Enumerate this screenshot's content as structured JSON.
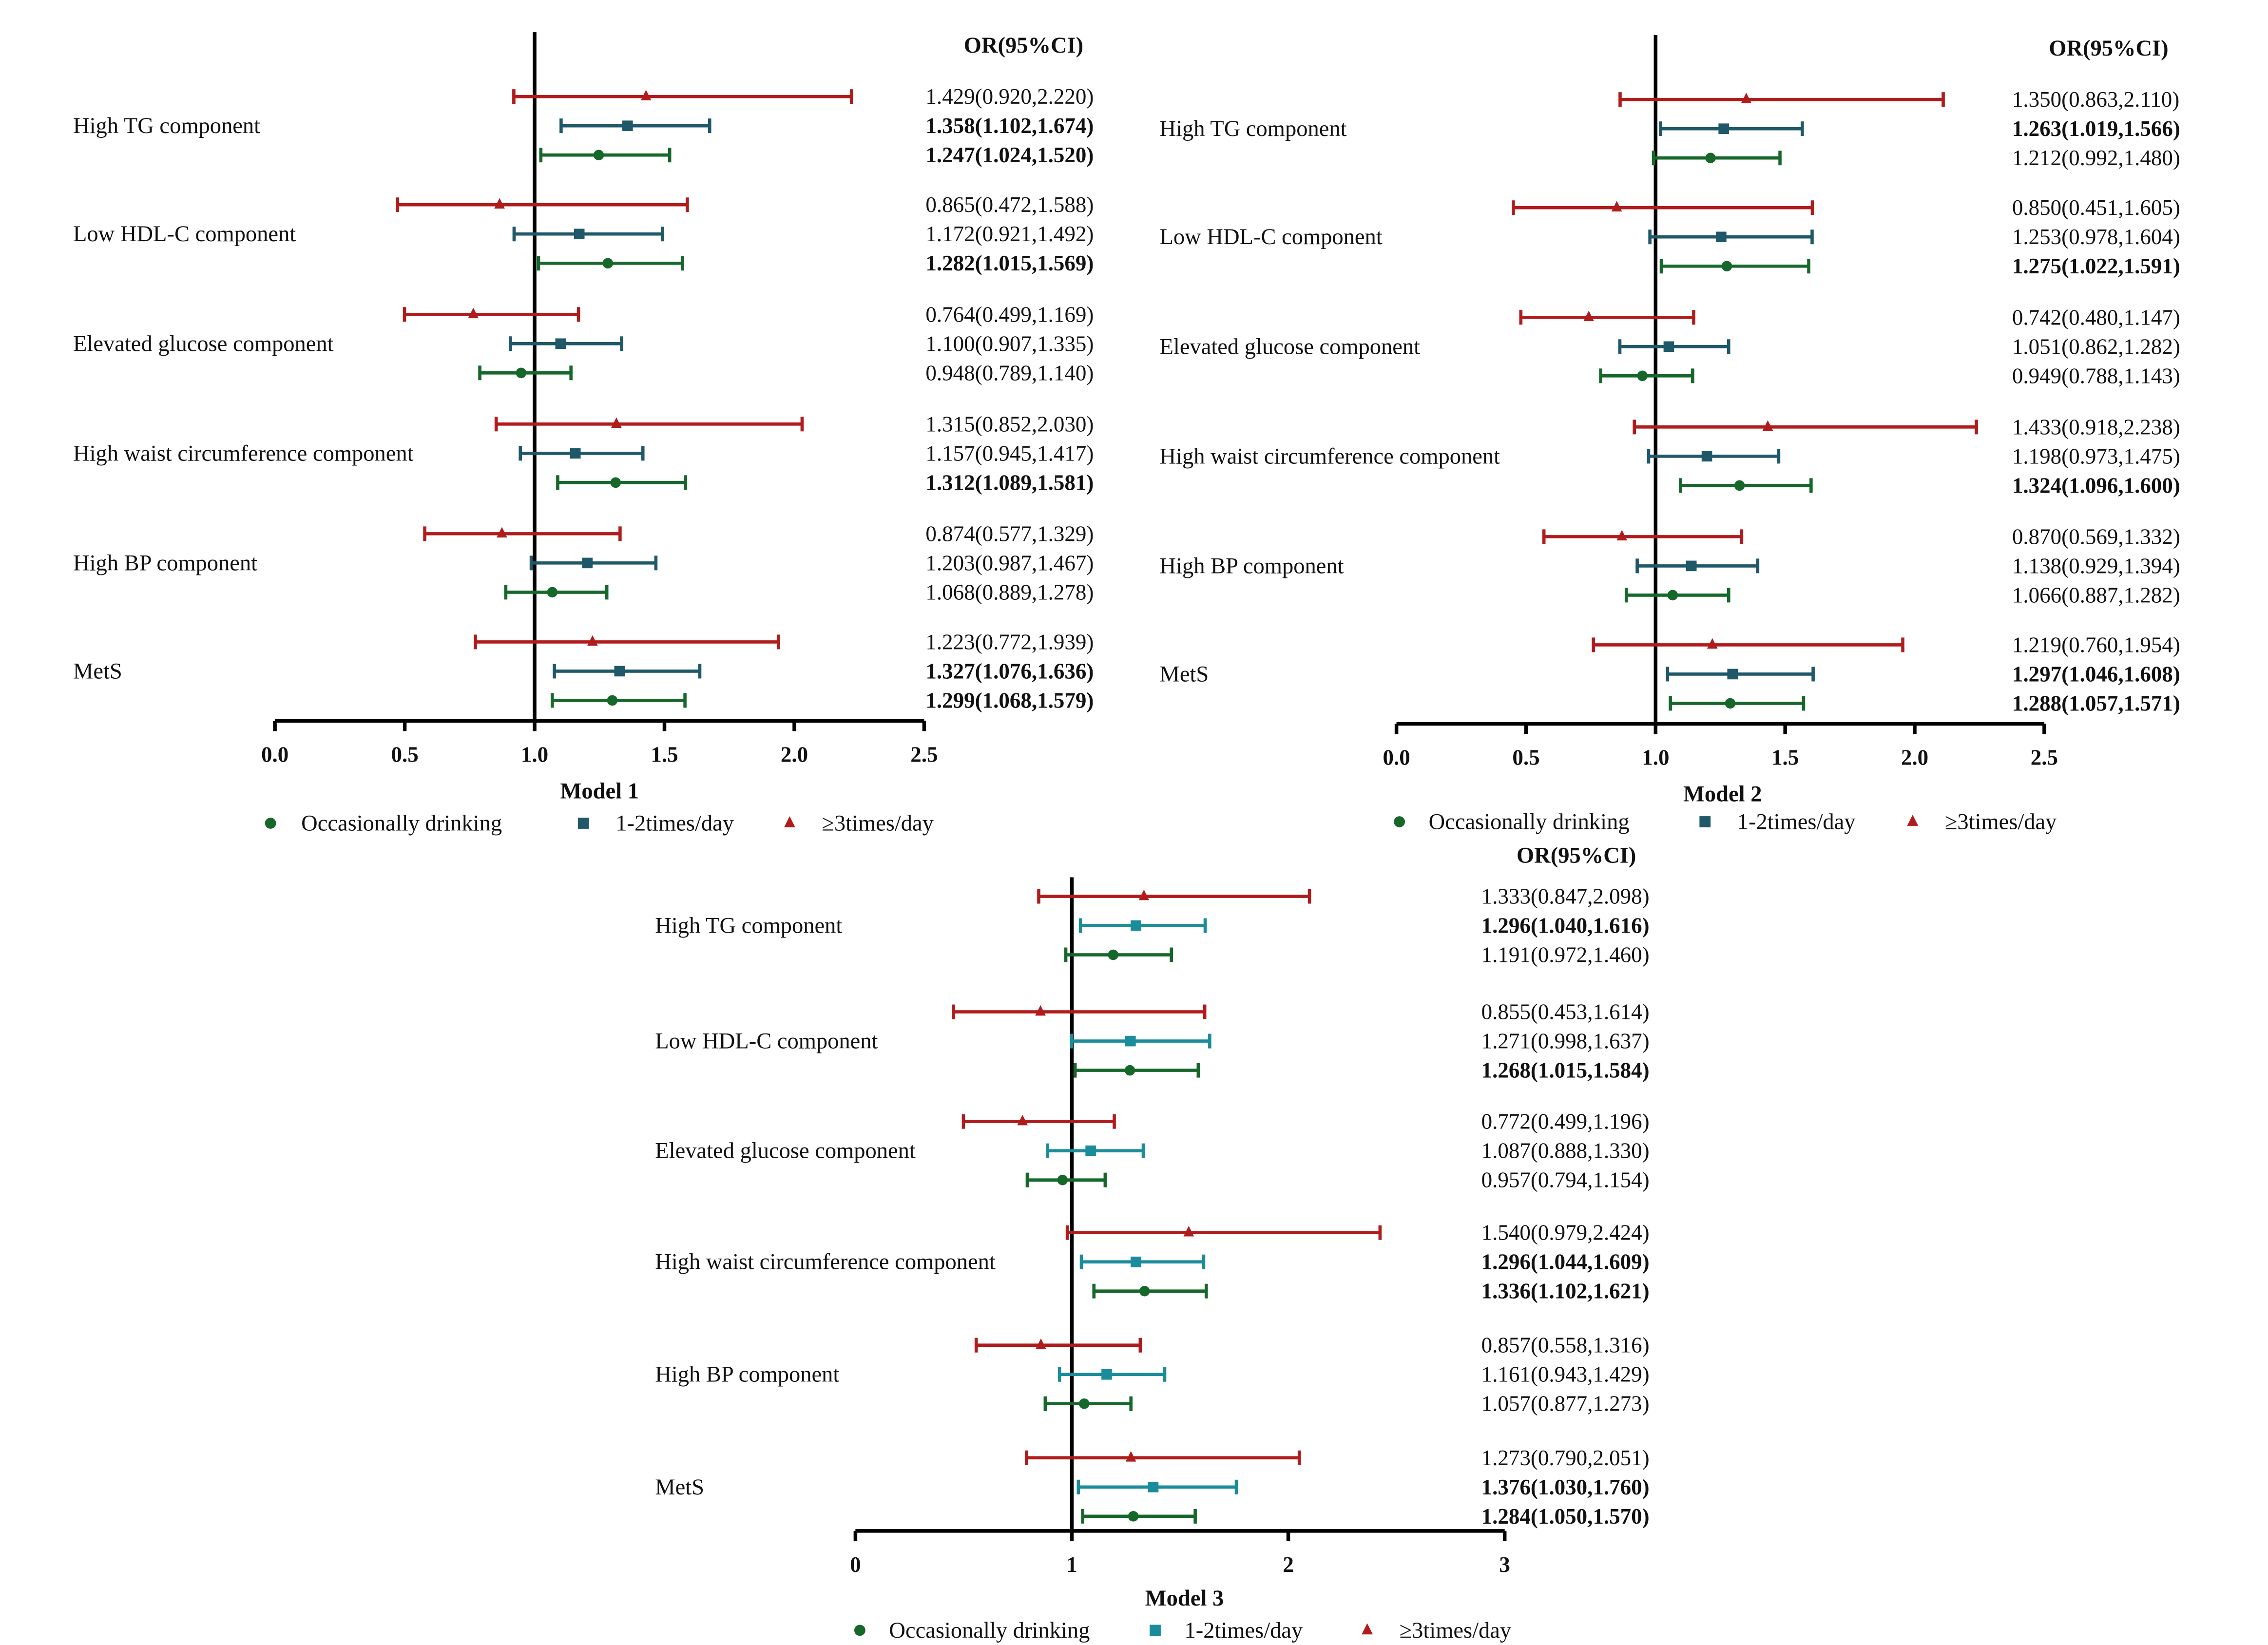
{
  "legend": [
    {
      "name": "Occasionally drinking",
      "marker": "circle"
    },
    {
      "name": "1-2times/day",
      "marker": "square"
    },
    {
      "name": "≥3times/day",
      "marker": "triangle"
    }
  ],
  "chart_data": [
    {
      "type": "forest",
      "title": "Model 1",
      "column_header": "OR(95%CI)",
      "xlim": [
        0,
        2.5
      ],
      "ticks": [
        0,
        0.5,
        1,
        1.5,
        2,
        2.5
      ],
      "tick_labels": [
        "0.0",
        "0.5",
        "1.0",
        "1.5",
        "2.0",
        "2.5"
      ],
      "reference_line": 1,
      "colors": {
        "≥3times/day": "#b01c1c",
        "1-2times/day": "#1f5868",
        "Occasionally drinking": "#16682a"
      },
      "row_order": [
        "≥3times/day",
        "1-2times/day",
        "Occasionally drinking"
      ],
      "groups": [
        {
          "name": "High TG component",
          "rows": [
            {
              "or": 1.429,
              "lo": 0.92,
              "hi": 2.22,
              "bold": false
            },
            {
              "or": 1.358,
              "lo": 1.102,
              "hi": 1.674,
              "bold": true
            },
            {
              "or": 1.247,
              "lo": 1.024,
              "hi": 1.52,
              "bold": true
            }
          ]
        },
        {
          "name": "Low HDL-C component",
          "rows": [
            {
              "or": 0.865,
              "lo": 0.472,
              "hi": 1.588,
              "bold": false
            },
            {
              "or": 1.172,
              "lo": 0.921,
              "hi": 1.492,
              "bold": false
            },
            {
              "or": 1.282,
              "lo": 1.015,
              "hi": 1.569,
              "bold": true
            }
          ]
        },
        {
          "name": "Elevated glucose component",
          "rows": [
            {
              "or": 0.764,
              "lo": 0.499,
              "hi": 1.169,
              "bold": false
            },
            {
              "or": 1.1,
              "lo": 0.907,
              "hi": 1.335,
              "bold": false
            },
            {
              "or": 0.948,
              "lo": 0.789,
              "hi": 1.14,
              "bold": false
            }
          ]
        },
        {
          "name": "High waist circumference component",
          "rows": [
            {
              "or": 1.315,
              "lo": 0.852,
              "hi": 2.03,
              "bold": false
            },
            {
              "or": 1.157,
              "lo": 0.945,
              "hi": 1.417,
              "bold": false
            },
            {
              "or": 1.312,
              "lo": 1.089,
              "hi": 1.581,
              "bold": true
            }
          ]
        },
        {
          "name": "High BP component",
          "rows": [
            {
              "or": 0.874,
              "lo": 0.577,
              "hi": 1.329,
              "bold": false
            },
            {
              "or": 1.203,
              "lo": 0.987,
              "hi": 1.467,
              "bold": false
            },
            {
              "or": 1.068,
              "lo": 0.889,
              "hi": 1.278,
              "bold": false
            }
          ]
        },
        {
          "name": "MetS",
          "rows": [
            {
              "or": 1.223,
              "lo": 0.772,
              "hi": 1.939,
              "bold": false
            },
            {
              "or": 1.327,
              "lo": 1.076,
              "hi": 1.636,
              "bold": true
            },
            {
              "or": 1.299,
              "lo": 1.068,
              "hi": 1.579,
              "bold": true
            }
          ]
        }
      ]
    },
    {
      "type": "forest",
      "title": "Model  2",
      "column_header": "OR(95%CI)",
      "xlim": [
        0,
        2.5
      ],
      "ticks": [
        0,
        0.5,
        1,
        1.5,
        2,
        2.5
      ],
      "tick_labels": [
        "0.0",
        "0.5",
        "1.0",
        "1.5",
        "2.0",
        "2.5"
      ],
      "reference_line": 1,
      "colors": {
        "≥3times/day": "#b01c1c",
        "1-2times/day": "#1f5868",
        "Occasionally drinking": "#16682a"
      },
      "row_order": [
        "≥3times/day",
        "1-2times/day",
        "Occasionally drinking"
      ],
      "groups": [
        {
          "name": "High TG component",
          "rows": [
            {
              "or": 1.35,
              "lo": 0.863,
              "hi": 2.11,
              "bold": false
            },
            {
              "or": 1.263,
              "lo": 1.019,
              "hi": 1.566,
              "bold": true
            },
            {
              "or": 1.212,
              "lo": 0.992,
              "hi": 1.48,
              "bold": false
            }
          ]
        },
        {
          "name": "Low HDL-C component",
          "rows": [
            {
              "or": 0.85,
              "lo": 0.451,
              "hi": 1.605,
              "bold": false
            },
            {
              "or": 1.253,
              "lo": 0.978,
              "hi": 1.604,
              "bold": false
            },
            {
              "or": 1.275,
              "lo": 1.022,
              "hi": 1.591,
              "bold": true
            }
          ]
        },
        {
          "name": "Elevated glucose component",
          "rows": [
            {
              "or": 0.742,
              "lo": 0.48,
              "hi": 1.147,
              "bold": false
            },
            {
              "or": 1.051,
              "lo": 0.862,
              "hi": 1.282,
              "bold": false
            },
            {
              "or": 0.949,
              "lo": 0.788,
              "hi": 1.143,
              "bold": false
            }
          ]
        },
        {
          "name": "High waist circumference component",
          "rows": [
            {
              "or": 1.433,
              "lo": 0.918,
              "hi": 2.238,
              "bold": false
            },
            {
              "or": 1.198,
              "lo": 0.973,
              "hi": 1.475,
              "bold": false
            },
            {
              "or": 1.324,
              "lo": 1.096,
              "hi": 1.6,
              "bold": true
            }
          ]
        },
        {
          "name": "High BP component",
          "rows": [
            {
              "or": 0.87,
              "lo": 0.569,
              "hi": 1.332,
              "bold": false
            },
            {
              "or": 1.138,
              "lo": 0.929,
              "hi": 1.394,
              "bold": false
            },
            {
              "or": 1.066,
              "lo": 0.887,
              "hi": 1.282,
              "bold": false
            }
          ]
        },
        {
          "name": "MetS",
          "rows": [
            {
              "or": 1.219,
              "lo": 0.76,
              "hi": 1.954,
              "bold": false
            },
            {
              "or": 1.297,
              "lo": 1.046,
              "hi": 1.608,
              "bold": true
            },
            {
              "or": 1.288,
              "lo": 1.057,
              "hi": 1.571,
              "bold": true
            }
          ]
        }
      ]
    },
    {
      "type": "forest",
      "title": "Model  3",
      "column_header": "OR(95%CI)",
      "xlim": [
        0,
        3
      ],
      "ticks": [
        0,
        1,
        2,
        3
      ],
      "tick_labels": [
        "0",
        "1",
        "2",
        "3"
      ],
      "reference_line": 1,
      "colors": {
        "≥3times/day": "#b01c1c",
        "1-2times/day": "#1a8c9c",
        "Occasionally drinking": "#16682a"
      },
      "row_order": [
        "≥3times/day",
        "1-2times/day",
        "Occasionally drinking"
      ],
      "groups": [
        {
          "name": "High TG component",
          "rows": [
            {
              "or": 1.333,
              "lo": 0.847,
              "hi": 2.098,
              "bold": false
            },
            {
              "or": 1.296,
              "lo": 1.04,
              "hi": 1.616,
              "bold": true
            },
            {
              "or": 1.191,
              "lo": 0.972,
              "hi": 1.46,
              "bold": false
            }
          ]
        },
        {
          "name": "Low HDL-C component",
          "rows": [
            {
              "or": 0.855,
              "lo": 0.453,
              "hi": 1.614,
              "bold": false
            },
            {
              "or": 1.271,
              "lo": 0.998,
              "hi": 1.637,
              "bold": false
            },
            {
              "or": 1.268,
              "lo": 1.015,
              "hi": 1.584,
              "bold": true
            }
          ]
        },
        {
          "name": "Elevated glucose component",
          "rows": [
            {
              "or": 0.772,
              "lo": 0.499,
              "hi": 1.196,
              "bold": false
            },
            {
              "or": 1.087,
              "lo": 0.888,
              "hi": 1.33,
              "bold": false
            },
            {
              "or": 0.957,
              "lo": 0.794,
              "hi": 1.154,
              "bold": false
            }
          ]
        },
        {
          "name": "High waist circumference component",
          "rows": [
            {
              "or": 1.54,
              "lo": 0.979,
              "hi": 2.424,
              "bold": false
            },
            {
              "or": 1.296,
              "lo": 1.044,
              "hi": 1.609,
              "bold": true
            },
            {
              "or": 1.336,
              "lo": 1.102,
              "hi": 1.621,
              "bold": true
            }
          ]
        },
        {
          "name": "High BP component",
          "rows": [
            {
              "or": 0.857,
              "lo": 0.558,
              "hi": 1.316,
              "bold": false
            },
            {
              "or": 1.161,
              "lo": 0.943,
              "hi": 1.429,
              "bold": false
            },
            {
              "or": 1.057,
              "lo": 0.877,
              "hi": 1.273,
              "bold": false
            }
          ]
        },
        {
          "name": "MetS",
          "rows": [
            {
              "or": 1.273,
              "lo": 0.79,
              "hi": 2.051,
              "bold": false
            },
            {
              "or": 1.376,
              "lo": 1.03,
              "hi": 1.76,
              "bold": true
            },
            {
              "or": 1.284,
              "lo": 1.05,
              "hi": 1.57,
              "bold": true
            }
          ]
        }
      ]
    }
  ]
}
